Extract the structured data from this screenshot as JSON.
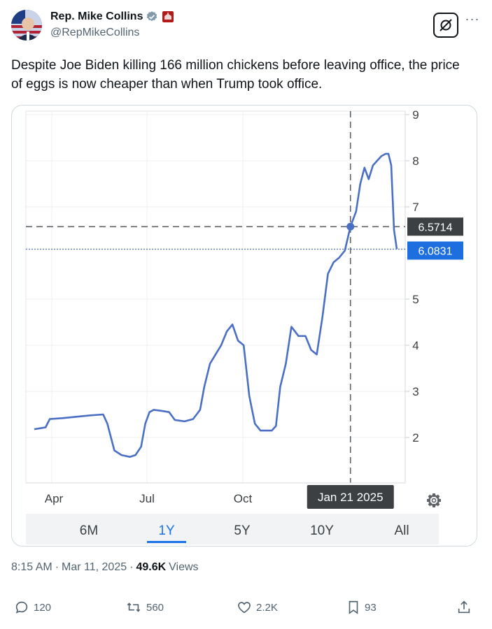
{
  "author": {
    "display_name": "Rep. Mike Collins",
    "handle": "@RepMikeCollins"
  },
  "tweet": {
    "text": "Despite Joe Biden killing 166 million chickens before leaving office, the price of eggs is now cheaper than when Trump took office."
  },
  "chart_data": {
    "type": "line",
    "x_ticks": [
      "Apr",
      "Jul",
      "Oct"
    ],
    "y_ticks": [
      2,
      3,
      4,
      5,
      7,
      8,
      9
    ],
    "ylim": [
      1,
      9.2
    ],
    "grid": true,
    "crosshair": {
      "label": "Jan 21 2025",
      "value": "6.5714",
      "y": 6.5714
    },
    "current": {
      "value": "6.0831",
      "y": 6.0831
    },
    "series": [
      {
        "color": "#4a6fc4",
        "points": [
          [
            0,
            2.18
          ],
          [
            4,
            2.2
          ],
          [
            8,
            2.22
          ],
          [
            11,
            2.4
          ],
          [
            20,
            2.42
          ],
          [
            30,
            2.45
          ],
          [
            40,
            2.48
          ],
          [
            49,
            2.5
          ],
          [
            52,
            2.3
          ],
          [
            57,
            1.72
          ],
          [
            62,
            1.62
          ],
          [
            68,
            1.58
          ],
          [
            72,
            1.62
          ],
          [
            76,
            1.8
          ],
          [
            79,
            2.3
          ],
          [
            82,
            2.55
          ],
          [
            85,
            2.6
          ],
          [
            90,
            2.58
          ],
          [
            96,
            2.55
          ],
          [
            100,
            2.38
          ],
          [
            107,
            2.35
          ],
          [
            113,
            2.4
          ],
          [
            118,
            2.6
          ],
          [
            121,
            3.1
          ],
          [
            125,
            3.6
          ],
          [
            129,
            3.8
          ],
          [
            133,
            4.0
          ],
          [
            137,
            4.3
          ],
          [
            141,
            4.45
          ],
          [
            145,
            4.1
          ],
          [
            149,
            4.0
          ],
          [
            153,
            2.9
          ],
          [
            157,
            2.3
          ],
          [
            161,
            2.15
          ],
          [
            169,
            2.15
          ],
          [
            172,
            2.25
          ],
          [
            175,
            3.1
          ],
          [
            179,
            3.6
          ],
          [
            183,
            4.4
          ],
          [
            188,
            4.2
          ],
          [
            193,
            4.2
          ],
          [
            197,
            3.9
          ],
          [
            201,
            3.8
          ],
          [
            205,
            4.6
          ],
          [
            209,
            5.55
          ],
          [
            213,
            5.8
          ],
          [
            217,
            5.9
          ],
          [
            221,
            6.05
          ],
          [
            225,
            6.5714
          ],
          [
            229,
            6.9
          ],
          [
            232,
            7.5
          ],
          [
            235,
            7.85
          ],
          [
            238,
            7.6
          ],
          [
            241,
            7.9
          ],
          [
            244,
            8.0
          ],
          [
            247,
            8.1
          ],
          [
            250,
            8.15
          ],
          [
            252,
            8.15
          ],
          [
            254,
            7.9
          ],
          [
            256,
            6.5
          ],
          [
            258,
            6.0831
          ]
        ]
      }
    ],
    "range_tabs": [
      "6M",
      "1Y",
      "5Y",
      "10Y",
      "All"
    ],
    "selected_range": "1Y"
  },
  "meta": {
    "time": "8:15 AM",
    "date": "Mar 11, 2025",
    "views_count": "49.6K",
    "views_label": "Views",
    "separator": "·"
  },
  "actions": {
    "replies": "120",
    "reposts": "560",
    "likes": "2.2K",
    "bookmarks": "93"
  },
  "colors": {
    "line": "#4a6fc4",
    "accent_blue": "#1d6fe0",
    "label_dark": "#3c4043",
    "tab_selected": "#1a73e8"
  }
}
